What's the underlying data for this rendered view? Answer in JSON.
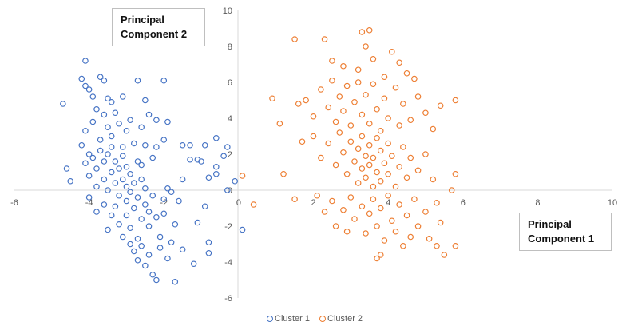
{
  "chart_data": {
    "type": "scatter",
    "xlim": [
      -6,
      10
    ],
    "ylim": [
      -6,
      10
    ],
    "x_ticks": [
      "-6",
      "-4",
      "-2",
      "0",
      "2",
      "4",
      "6",
      "8",
      "10"
    ],
    "y_ticks": [
      "-6",
      "-4",
      "-2",
      "0",
      "2",
      "4",
      "6",
      "8",
      "10"
    ],
    "grid": false,
    "legend_position": "bottom",
    "annotations": {
      "pc2": "Principal Component 2",
      "pc1": "Principal Component 1"
    },
    "series": [
      {
        "name": "Cluster 1",
        "color": "#4472c4",
        "points": [
          [
            -4.7,
            4.8
          ],
          [
            -4.1,
            7.2
          ],
          [
            -4.2,
            6.2
          ],
          [
            -4.1,
            5.8
          ],
          [
            -4.0,
            5.6
          ],
          [
            -3.7,
            6.3
          ],
          [
            -3.6,
            6.1
          ],
          [
            -2.7,
            6.1
          ],
          [
            -2.0,
            6.1
          ],
          [
            -3.9,
            5.2
          ],
          [
            -3.5,
            5.1
          ],
          [
            -3.1,
            5.2
          ],
          [
            -3.4,
            4.9
          ],
          [
            -2.5,
            5.0
          ],
          [
            -4.6,
            1.2
          ],
          [
            -4.5,
            0.5
          ],
          [
            -4.2,
            2.5
          ],
          [
            -4.1,
            3.3
          ],
          [
            -4.0,
            2.0
          ],
          [
            -3.9,
            3.8
          ],
          [
            -3.8,
            4.5
          ],
          [
            -3.7,
            2.8
          ],
          [
            -3.6,
            4.2
          ],
          [
            -3.5,
            3.5
          ],
          [
            -3.4,
            3.0
          ],
          [
            -3.3,
            4.3
          ],
          [
            -3.2,
            3.7
          ],
          [
            -3.1,
            2.4
          ],
          [
            -3.0,
            3.3
          ],
          [
            -2.9,
            3.9
          ],
          [
            -2.8,
            2.6
          ],
          [
            -2.6,
            3.5
          ],
          [
            -2.5,
            2.5
          ],
          [
            -2.4,
            4.2
          ],
          [
            -2.2,
            3.9
          ],
          [
            -2.3,
            1.8
          ],
          [
            -2.6,
            1.4
          ],
          [
            -1.9,
            3.8
          ],
          [
            -2.0,
            2.8
          ],
          [
            -2.2,
            2.4
          ],
          [
            -4.1,
            1.5
          ],
          [
            -4.0,
            0.8
          ],
          [
            -3.9,
            1.8
          ],
          [
            -3.8,
            0.2
          ],
          [
            -3.8,
            1.2
          ],
          [
            -3.7,
            2.2
          ],
          [
            -3.6,
            0.6
          ],
          [
            -3.6,
            1.6
          ],
          [
            -3.5,
            2.0
          ],
          [
            -3.5,
            0.0
          ],
          [
            -3.4,
            1.0
          ],
          [
            -3.4,
            2.4
          ],
          [
            -3.3,
            0.4
          ],
          [
            -3.3,
            1.6
          ],
          [
            -3.2,
            -0.3
          ],
          [
            -3.2,
            1.2
          ],
          [
            -3.1,
            0.6
          ],
          [
            -3.1,
            1.9
          ],
          [
            -3.0,
            -0.6
          ],
          [
            -3.0,
            0.2
          ],
          [
            -3.0,
            1.3
          ],
          [
            -2.9,
            -0.1
          ],
          [
            -2.9,
            0.9
          ],
          [
            -2.8,
            -1.0
          ],
          [
            -2.8,
            0.4
          ],
          [
            -2.7,
            1.6
          ],
          [
            -2.7,
            -0.4
          ],
          [
            -2.6,
            0.6
          ],
          [
            -2.6,
            -1.6
          ],
          [
            -2.5,
            -0.8
          ],
          [
            -2.5,
            0.1
          ],
          [
            -2.4,
            -2.0
          ],
          [
            -2.4,
            -1.2
          ],
          [
            -2.3,
            -0.3
          ],
          [
            -2.2,
            -1.5
          ],
          [
            -2.1,
            -2.6
          ],
          [
            -2.0,
            -0.5
          ],
          [
            -4.0,
            -0.4
          ],
          [
            -3.8,
            -1.2
          ],
          [
            -3.6,
            -0.8
          ],
          [
            -3.5,
            -2.2
          ],
          [
            -3.4,
            -1.4
          ],
          [
            -3.3,
            -0.9
          ],
          [
            -3.2,
            -1.9
          ],
          [
            -3.1,
            -2.6
          ],
          [
            -3.0,
            -1.4
          ],
          [
            -2.9,
            -3.0
          ],
          [
            -2.9,
            -2.1
          ],
          [
            -2.8,
            -3.4
          ],
          [
            -2.7,
            -2.7
          ],
          [
            -2.7,
            -3.9
          ],
          [
            -2.6,
            -3.1
          ],
          [
            -2.5,
            -4.2
          ],
          [
            -2.4,
            -3.6
          ],
          [
            -2.3,
            -4.7
          ],
          [
            -2.2,
            -5.0
          ],
          [
            -2.1,
            -3.2
          ],
          [
            -1.9,
            -3.8
          ],
          [
            -1.8,
            -2.9
          ],
          [
            -1.7,
            -5.1
          ],
          [
            -2.0,
            -1.3
          ],
          [
            -1.9,
            0.1
          ],
          [
            -1.8,
            -0.1
          ],
          [
            -1.5,
            0.6
          ],
          [
            -1.3,
            1.7
          ],
          [
            -1.1,
            1.7
          ],
          [
            -1.0,
            1.6
          ],
          [
            -0.8,
            0.7
          ],
          [
            -0.6,
            1.3
          ],
          [
            -0.6,
            0.9
          ],
          [
            -0.9,
            -0.9
          ],
          [
            -1.1,
            -1.8
          ],
          [
            -1.5,
            -3.3
          ],
          [
            -0.8,
            -2.9
          ],
          [
            -0.8,
            -3.5
          ],
          [
            -1.2,
            -4.1
          ],
          [
            -1.5,
            2.5
          ],
          [
            -1.3,
            2.5
          ],
          [
            -0.9,
            2.5
          ],
          [
            -0.6,
            2.9
          ],
          [
            -0.3,
            2.4
          ],
          [
            -0.4,
            1.9
          ],
          [
            -0.3,
            0.0
          ],
          [
            -0.1,
            0.5
          ],
          [
            0.1,
            -2.2
          ],
          [
            -1.7,
            -1.9
          ],
          [
            -1.6,
            -0.6
          ]
        ]
      },
      {
        "name": "Cluster 2",
        "color": "#ed7d31",
        "points": [
          [
            1.5,
            8.4
          ],
          [
            2.3,
            8.4
          ],
          [
            3.3,
            8.8
          ],
          [
            3.5,
            8.9
          ],
          [
            3.4,
            8.0
          ],
          [
            2.5,
            7.2
          ],
          [
            3.6,
            7.3
          ],
          [
            4.1,
            7.7
          ],
          [
            4.3,
            7.1
          ],
          [
            2.8,
            6.9
          ],
          [
            3.2,
            6.7
          ],
          [
            3.9,
            6.3
          ],
          [
            4.5,
            6.5
          ],
          [
            4.7,
            6.2
          ],
          [
            0.9,
            5.1
          ],
          [
            5.8,
            5.0
          ],
          [
            5.4,
            4.7
          ],
          [
            1.1,
            3.7
          ],
          [
            1.2,
            0.9
          ],
          [
            0.4,
            -0.8
          ],
          [
            0.1,
            0.8
          ],
          [
            5.8,
            -3.1
          ],
          [
            5.5,
            -3.6
          ],
          [
            5.3,
            -3.1
          ],
          [
            3.8,
            -3.6
          ],
          [
            3.7,
            -3.8
          ],
          [
            1.5,
            -0.5
          ],
          [
            5.7,
            0.0
          ],
          [
            5.8,
            0.9
          ],
          [
            1.6,
            4.8
          ],
          [
            1.8,
            5.0
          ],
          [
            2.0,
            4.1
          ],
          [
            2.2,
            5.6
          ],
          [
            2.4,
            4.6
          ],
          [
            2.5,
            6.1
          ],
          [
            2.6,
            3.8
          ],
          [
            2.7,
            5.2
          ],
          [
            2.8,
            4.4
          ],
          [
            2.9,
            5.8
          ],
          [
            3.0,
            3.6
          ],
          [
            3.1,
            4.9
          ],
          [
            3.2,
            6.0
          ],
          [
            3.3,
            4.2
          ],
          [
            3.4,
            5.3
          ],
          [
            3.5,
            3.7
          ],
          [
            3.6,
            5.9
          ],
          [
            3.7,
            4.5
          ],
          [
            3.8,
            3.3
          ],
          [
            3.9,
            5.1
          ],
          [
            4.0,
            4.0
          ],
          [
            4.2,
            5.7
          ],
          [
            4.3,
            3.6
          ],
          [
            4.4,
            4.8
          ],
          [
            4.6,
            3.9
          ],
          [
            4.8,
            5.2
          ],
          [
            5.0,
            4.3
          ],
          [
            5.2,
            3.4
          ],
          [
            1.7,
            2.7
          ],
          [
            2.0,
            3.0
          ],
          [
            2.2,
            1.8
          ],
          [
            2.4,
            2.6
          ],
          [
            2.6,
            1.4
          ],
          [
            2.7,
            3.2
          ],
          [
            2.8,
            2.1
          ],
          [
            2.9,
            0.9
          ],
          [
            3.0,
            2.7
          ],
          [
            3.1,
            1.6
          ],
          [
            3.2,
            0.4
          ],
          [
            3.2,
            2.3
          ],
          [
            3.3,
            1.2
          ],
          [
            3.3,
            3.0
          ],
          [
            3.4,
            1.9
          ],
          [
            3.4,
            0.7
          ],
          [
            3.5,
            2.5
          ],
          [
            3.5,
            1.4
          ],
          [
            3.6,
            0.2
          ],
          [
            3.6,
            1.8
          ],
          [
            3.7,
            2.9
          ],
          [
            3.7,
            1.0
          ],
          [
            3.8,
            2.2
          ],
          [
            3.8,
            0.5
          ],
          [
            3.9,
            1.5
          ],
          [
            4.0,
            2.6
          ],
          [
            4.0,
            0.9
          ],
          [
            4.1,
            1.9
          ],
          [
            4.2,
            0.2
          ],
          [
            4.3,
            1.3
          ],
          [
            4.4,
            2.4
          ],
          [
            4.5,
            0.7
          ],
          [
            4.6,
            1.8
          ],
          [
            4.8,
            1.1
          ],
          [
            5.0,
            2.0
          ],
          [
            5.2,
            0.6
          ],
          [
            2.1,
            -0.3
          ],
          [
            2.3,
            -1.2
          ],
          [
            2.5,
            -0.6
          ],
          [
            2.6,
            -2.0
          ],
          [
            2.8,
            -1.1
          ],
          [
            2.9,
            -2.3
          ],
          [
            3.0,
            -0.4
          ],
          [
            3.1,
            -1.6
          ],
          [
            3.3,
            -0.9
          ],
          [
            3.4,
            -2.4
          ],
          [
            3.5,
            -1.3
          ],
          [
            3.6,
            -0.5
          ],
          [
            3.7,
            -2.0
          ],
          [
            3.8,
            -1.0
          ],
          [
            3.9,
            -2.8
          ],
          [
            4.0,
            -0.3
          ],
          [
            4.1,
            -1.7
          ],
          [
            4.2,
            -2.3
          ],
          [
            4.3,
            -0.8
          ],
          [
            4.4,
            -3.1
          ],
          [
            4.5,
            -1.4
          ],
          [
            4.6,
            -2.6
          ],
          [
            4.7,
            -0.5
          ],
          [
            4.8,
            -2.0
          ],
          [
            5.0,
            -1.2
          ],
          [
            5.1,
            -2.7
          ],
          [
            5.3,
            -0.7
          ],
          [
            5.4,
            -1.8
          ]
        ]
      }
    ]
  }
}
